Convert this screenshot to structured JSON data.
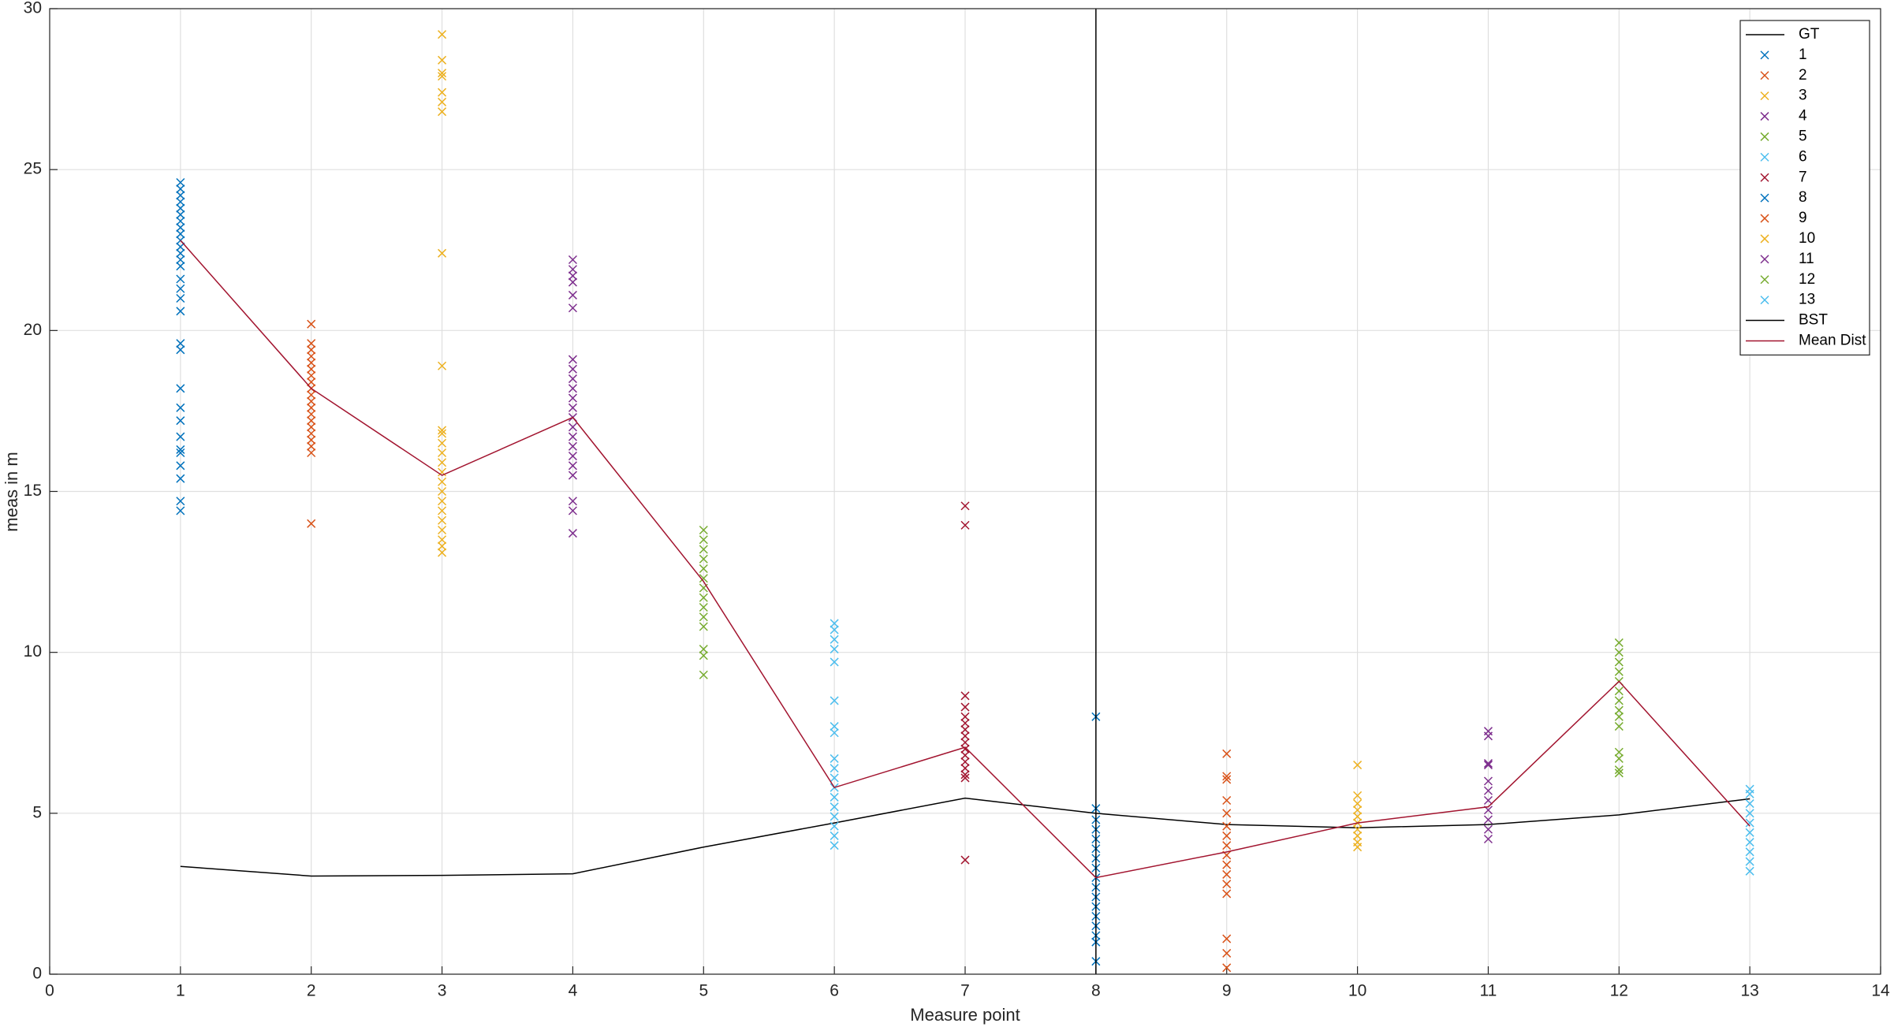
{
  "chart_data": {
    "type": "scatter",
    "xlabel": "Measure point",
    "ylabel": "meas in m",
    "xlim": [
      0,
      14
    ],
    "ylim": [
      0,
      30
    ],
    "xticks": [
      0,
      1,
      2,
      3,
      4,
      5,
      6,
      7,
      8,
      9,
      10,
      11,
      12,
      13,
      14
    ],
    "yticks": [
      0,
      5,
      10,
      15,
      20,
      25,
      30
    ],
    "grid": true,
    "legend": "top-right",
    "series": [
      {
        "name": "GT",
        "type": "line",
        "color": "#000000",
        "x": [
          1,
          2,
          3,
          4,
          5,
          6,
          7,
          8,
          9,
          10,
          11,
          12,
          13
        ],
        "values": [
          3.35,
          3.05,
          3.07,
          3.12,
          3.95,
          4.7,
          5.47,
          5.0,
          4.65,
          4.55,
          4.65,
          4.95,
          5.45
        ]
      },
      {
        "name": "1",
        "type": "scatter",
        "color": "#0072BD",
        "x": 1,
        "values": [
          24.6,
          24.4,
          24.2,
          24.0,
          23.8,
          23.6,
          23.4,
          23.2,
          23.0,
          22.8,
          22.6,
          22.4,
          22.2,
          22.0,
          21.6,
          21.3,
          21.0,
          20.6,
          19.6,
          19.4,
          18.2,
          17.6,
          17.2,
          16.7,
          16.3,
          16.2,
          15.8,
          15.4,
          14.7,
          14.4
        ]
      },
      {
        "name": "2",
        "type": "scatter",
        "color": "#D95319",
        "x": 2,
        "values": [
          20.2,
          19.6,
          19.4,
          19.2,
          19.0,
          18.8,
          18.6,
          18.4,
          18.2,
          18.0,
          17.8,
          17.6,
          17.4,
          17.2,
          17.0,
          16.8,
          16.6,
          16.4,
          16.2,
          14.0
        ]
      },
      {
        "name": "3",
        "type": "scatter",
        "color": "#EDB120",
        "x": 3,
        "values": [
          29.2,
          28.4,
          28.0,
          27.9,
          27.4,
          27.1,
          26.8,
          22.4,
          18.9,
          16.9,
          16.8,
          16.5,
          16.2,
          15.9,
          15.6,
          15.3,
          15.0,
          14.7,
          14.4,
          14.1,
          13.8,
          13.5,
          13.3,
          13.1
        ]
      },
      {
        "name": "4",
        "type": "scatter",
        "color": "#7E2F8E",
        "x": 4,
        "values": [
          22.2,
          21.9,
          21.7,
          21.5,
          21.1,
          20.7,
          19.1,
          18.8,
          18.5,
          18.2,
          17.9,
          17.6,
          17.3,
          17.0,
          16.7,
          16.4,
          16.1,
          15.8,
          15.5,
          14.7,
          14.4,
          13.7
        ]
      },
      {
        "name": "5",
        "type": "scatter",
        "color": "#77AC30",
        "x": 5,
        "values": [
          13.8,
          13.5,
          13.2,
          12.9,
          12.6,
          12.3,
          12.0,
          11.7,
          11.4,
          11.1,
          10.8,
          10.1,
          9.9,
          9.3
        ]
      },
      {
        "name": "6",
        "type": "scatter",
        "color": "#4DBEEE",
        "x": 6,
        "values": [
          10.9,
          10.7,
          10.4,
          10.1,
          9.7,
          8.5,
          7.7,
          7.5,
          6.7,
          6.4,
          6.1,
          5.8,
          5.5,
          5.2,
          4.9,
          4.6,
          4.3,
          4.0
        ]
      },
      {
        "name": "7",
        "type": "scatter",
        "color": "#A2142F",
        "x": 7,
        "values": [
          14.55,
          13.95,
          8.65,
          8.3,
          8.0,
          7.8,
          7.6,
          7.4,
          7.2,
          7.0,
          6.8,
          6.6,
          6.4,
          6.2,
          6.1,
          3.55
        ]
      },
      {
        "name": "8",
        "type": "scatter",
        "color": "#0072BD",
        "x": 8,
        "values": [
          8.0,
          5.15,
          4.8,
          4.5,
          4.2,
          3.9,
          3.6,
          3.3,
          3.0,
          2.7,
          2.4,
          2.1,
          1.8,
          1.5,
          1.2,
          1.0,
          0.4
        ]
      },
      {
        "name": "9",
        "type": "scatter",
        "color": "#D95319",
        "x": 9,
        "values": [
          6.85,
          6.15,
          6.05,
          5.4,
          5.0,
          4.6,
          4.3,
          4.0,
          3.7,
          3.4,
          3.1,
          2.8,
          2.5,
          1.1,
          0.65,
          0.2
        ]
      },
      {
        "name": "10",
        "type": "scatter",
        "color": "#EDB120",
        "x": 10,
        "values": [
          6.5,
          5.55,
          5.3,
          5.1,
          4.9,
          4.7,
          4.5,
          4.3,
          4.1,
          3.95
        ]
      },
      {
        "name": "11",
        "type": "scatter",
        "color": "#7E2F8E",
        "x": 11,
        "values": [
          7.55,
          7.4,
          6.55,
          6.5,
          6.0,
          5.7,
          5.4,
          5.1,
          4.8,
          4.5,
          4.2
        ]
      },
      {
        "name": "12",
        "type": "scatter",
        "color": "#77AC30",
        "x": 12,
        "values": [
          10.3,
          10.0,
          9.7,
          9.4,
          9.1,
          8.8,
          8.5,
          8.2,
          8.0,
          7.7,
          6.9,
          6.7,
          6.35,
          6.25
        ]
      },
      {
        "name": "13",
        "type": "scatter",
        "color": "#4DBEEE",
        "x": 13,
        "values": [
          5.75,
          5.6,
          5.3,
          5.0,
          4.7,
          4.4,
          4.1,
          3.8,
          3.5,
          3.2
        ]
      },
      {
        "name": "BST",
        "type": "line",
        "color": "#000000",
        "x": [
          8,
          8
        ],
        "values": [
          0,
          30
        ]
      },
      {
        "name": "Mean Dist",
        "type": "line",
        "color": "#A2142F",
        "x": [
          1,
          2,
          3,
          4,
          5,
          6,
          7,
          8,
          9,
          10,
          11,
          12,
          13
        ],
        "values": [
          22.8,
          18.2,
          15.5,
          17.3,
          12.2,
          5.8,
          7.05,
          3.0,
          3.8,
          4.7,
          5.2,
          9.1,
          4.6
        ]
      }
    ]
  }
}
